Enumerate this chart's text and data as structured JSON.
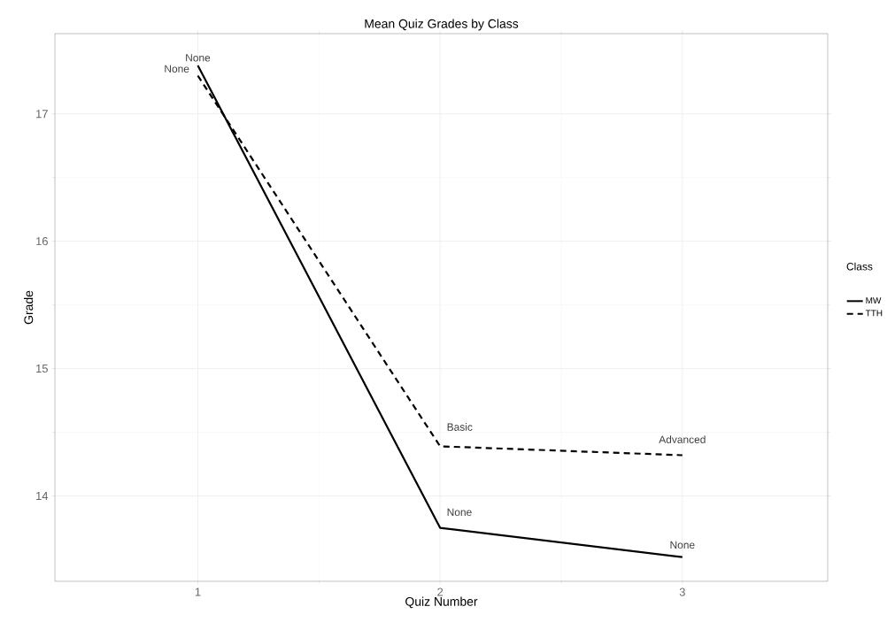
{
  "chart_data": {
    "type": "line",
    "title": "Mean Quiz Grades by Class",
    "xlabel": "Quiz Number",
    "ylabel": "Grade",
    "legend_title": "Class",
    "x": [
      1,
      2,
      3
    ],
    "series": [
      {
        "name": "MW",
        "color": "#000000",
        "values": [
          17.38,
          13.75,
          13.52
        ],
        "line_style": "solid"
      },
      {
        "name": "TTH",
        "color": "#000000",
        "values": [
          17.3,
          14.39,
          14.32
        ],
        "line_style": "dashed"
      }
    ],
    "xlim": [
      0.41,
      3.6
    ],
    "ylim": [
      13.33,
      17.63
    ],
    "xticks": [
      1,
      2,
      3
    ],
    "yticks": [
      14,
      15,
      16,
      17
    ],
    "grid": true,
    "legend": "right",
    "marker": "none",
    "annotations": [
      {
        "text": "None",
        "x": 1,
        "y": 17.38
      },
      {
        "text": "None",
        "x": 1,
        "y": 17.3
      },
      {
        "text": "Basic",
        "x": 2,
        "y": 14.39
      },
      {
        "text": "None",
        "x": 2,
        "y": 13.75
      },
      {
        "text": "Advanced",
        "x": 3,
        "y": 14.32
      },
      {
        "text": "None",
        "x": 3,
        "y": 13.52
      }
    ]
  }
}
